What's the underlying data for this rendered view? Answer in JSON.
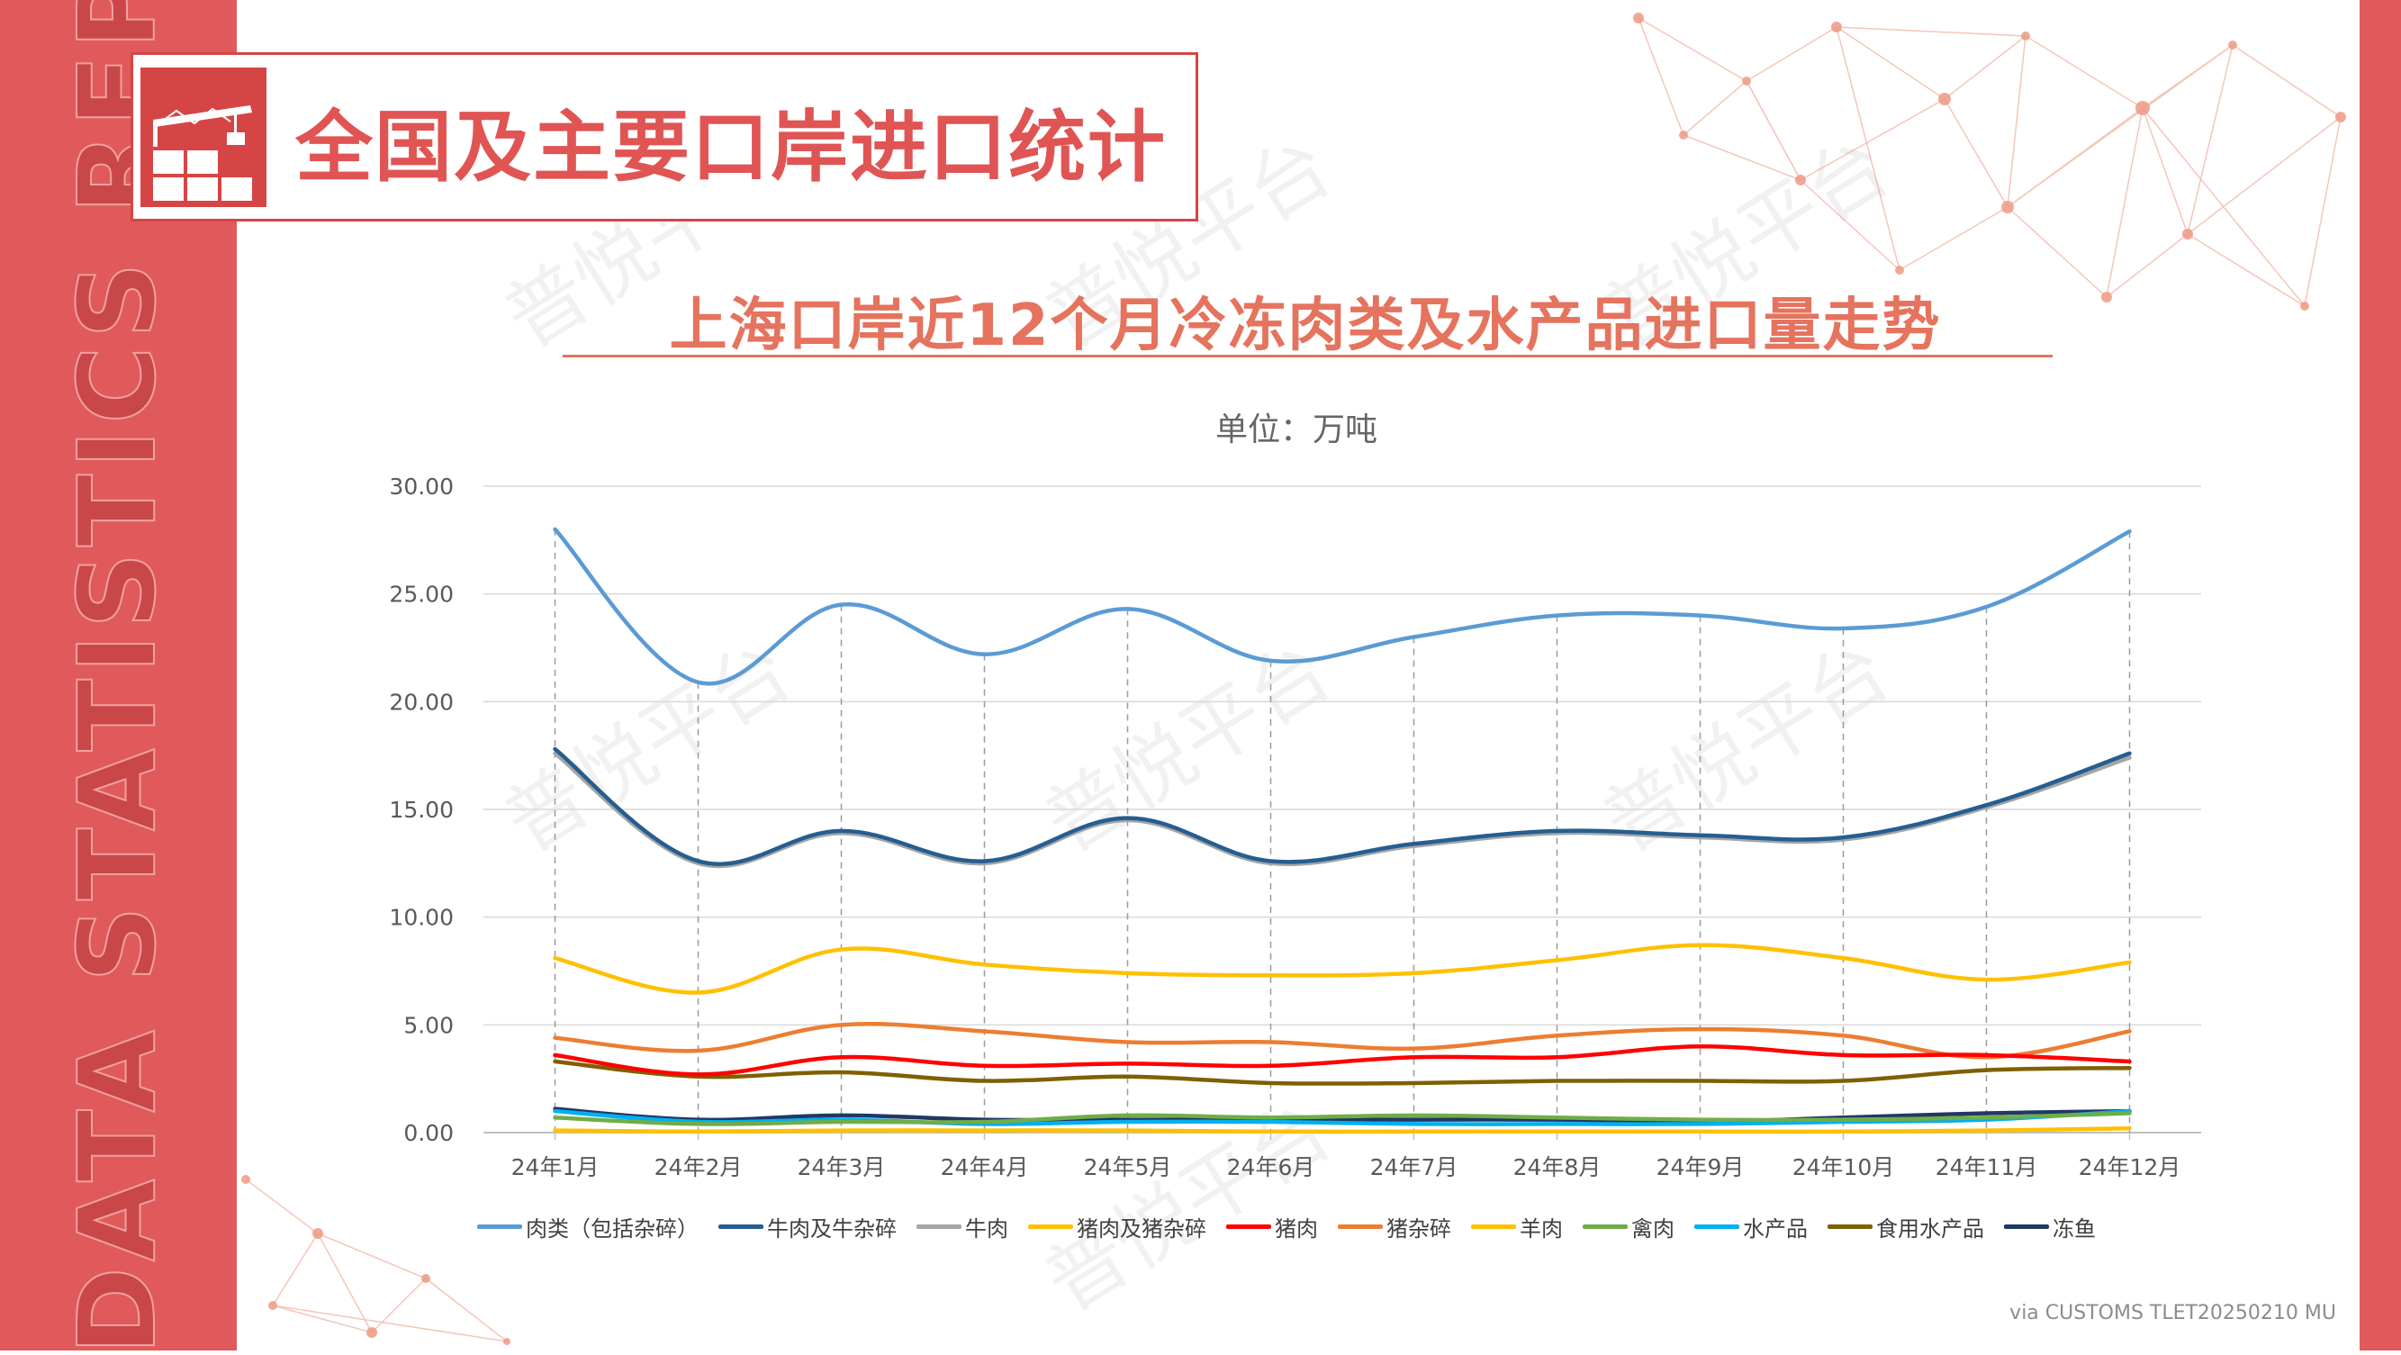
{
  "header": {
    "side_label": "DATA STATISTICS REPORT",
    "section_title": "全国及主要口岸进口统计",
    "watermark": "普悦平台"
  },
  "chart_data": {
    "type": "line",
    "title": "上海口岸近12个月冷冻肉类及水产品进口量走势",
    "subtitle": "单位：万吨",
    "xlabel": "",
    "ylabel": "",
    "ylim": [
      0,
      30
    ],
    "yticks": [
      "0.00",
      "5.00",
      "10.00",
      "15.00",
      "20.00",
      "25.00",
      "30.00"
    ],
    "grid": true,
    "legend_position": "bottom",
    "categories": [
      "24年1月",
      "24年2月",
      "24年3月",
      "24年4月",
      "24年5月",
      "24年6月",
      "24年7月",
      "24年8月",
      "24年9月",
      "24年10月",
      "24年11月",
      "24年12月"
    ],
    "series": [
      {
        "name": "肉类（包括杂碎）",
        "color": "#5b9bd5",
        "values": [
          28.0,
          20.9,
          24.5,
          22.2,
          24.3,
          21.9,
          23.0,
          24.0,
          24.0,
          23.4,
          24.4,
          27.9
        ]
      },
      {
        "name": "牛肉及牛杂碎",
        "color": "#255e91",
        "values": [
          17.8,
          12.6,
          14.0,
          12.6,
          14.6,
          12.6,
          13.4,
          14.0,
          13.8,
          13.7,
          15.2,
          17.6
        ]
      },
      {
        "name": "牛肉",
        "color": "#a5a5a5",
        "values": [
          17.6,
          12.5,
          13.9,
          12.5,
          14.5,
          12.5,
          13.3,
          13.9,
          13.7,
          13.6,
          15.1,
          17.4
        ]
      },
      {
        "name": "猪肉及猪杂碎",
        "color": "#ffc000",
        "values": [
          8.1,
          6.5,
          8.5,
          7.8,
          7.4,
          7.3,
          7.4,
          8.0,
          8.7,
          8.1,
          7.1,
          7.9
        ]
      },
      {
        "name": "猪肉",
        "color": "#ff0000",
        "values": [
          3.6,
          2.7,
          3.5,
          3.1,
          3.2,
          3.1,
          3.5,
          3.5,
          4.0,
          3.6,
          3.6,
          3.3
        ]
      },
      {
        "name": "猪杂碎",
        "color": "#ed7d31",
        "values": [
          4.4,
          3.8,
          5.0,
          4.7,
          4.2,
          4.2,
          3.9,
          4.5,
          4.8,
          4.5,
          3.5,
          4.7
        ]
      },
      {
        "name": "羊肉",
        "color": "#ffc000",
        "values": [
          0.1,
          0.05,
          0.1,
          0.1,
          0.1,
          0.05,
          0.05,
          0.05,
          0.05,
          0.05,
          0.1,
          0.2
        ]
      },
      {
        "name": "禽肉",
        "color": "#70ad47",
        "values": [
          0.7,
          0.4,
          0.5,
          0.5,
          0.8,
          0.7,
          0.8,
          0.7,
          0.6,
          0.6,
          0.7,
          0.9
        ]
      },
      {
        "name": "水产品",
        "color": "#00b0f0",
        "values": [
          1.0,
          0.5,
          0.6,
          0.4,
          0.5,
          0.5,
          0.4,
          0.4,
          0.4,
          0.5,
          0.6,
          1.0
        ]
      },
      {
        "name": "食用水产品",
        "color": "#7f6000",
        "values": [
          3.3,
          2.6,
          2.8,
          2.4,
          2.6,
          2.3,
          2.3,
          2.4,
          2.4,
          2.4,
          2.9,
          3.0
        ]
      },
      {
        "name": "冻鱼",
        "color": "#203864",
        "values": [
          1.1,
          0.6,
          0.8,
          0.6,
          0.6,
          0.6,
          0.6,
          0.6,
          0.5,
          0.7,
          0.9,
          1.0
        ]
      }
    ]
  },
  "footer": {
    "source": "via CUSTOMS TLET20250210 MU"
  }
}
